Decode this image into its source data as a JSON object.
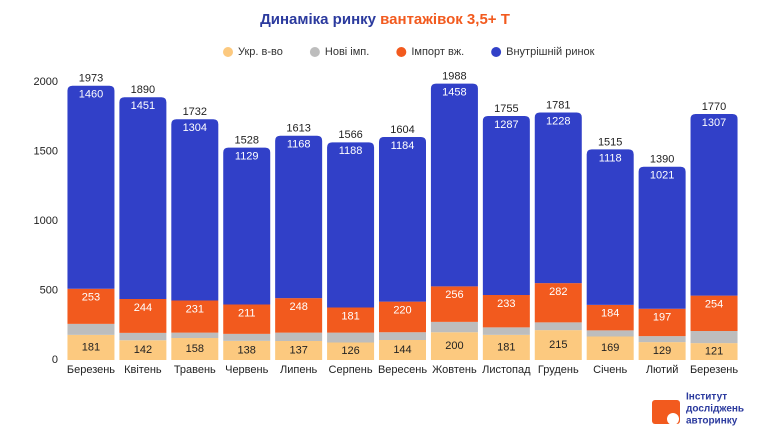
{
  "chart_data": {
    "type": "stacked-bar",
    "title_parts": [
      "Динаміка ринку",
      "вантажівок 3,5+ Т"
    ],
    "categories": [
      "Березень",
      "Квітень",
      "Травень",
      "Червень",
      "Липень",
      "Серпень",
      "Вересень",
      "Жовтень",
      "Листопад",
      "Грудень",
      "Січень",
      "Лютий",
      "Березень"
    ],
    "series": [
      {
        "name": "Укр. в-во",
        "color": "#fcc97f",
        "labels": true,
        "label_color": "#222",
        "values": [
          181,
          142,
          158,
          138,
          137,
          126,
          144,
          200,
          181,
          215,
          169,
          129,
          121
        ]
      },
      {
        "name": "Нові імп.",
        "color": "#bdbdbd",
        "labels": false,
        "values": [
          79,
          53,
          39,
          50,
          60,
          71,
          56,
          74,
          54,
          56,
          44,
          43,
          88
        ]
      },
      {
        "name": "Імпорт вж.",
        "color": "#f25a1e",
        "labels": true,
        "label_color": "#fff",
        "values": [
          253,
          244,
          231,
          211,
          248,
          181,
          220,
          256,
          233,
          282,
          184,
          197,
          254
        ]
      },
      {
        "name": "Внутрішній ринок",
        "color": "#3140c8",
        "labels": true,
        "label_color": "#fff",
        "values": [
          1460,
          1451,
          1304,
          1129,
          1168,
          1188,
          1184,
          1458,
          1287,
          1228,
          1118,
          1021,
          1307
        ]
      }
    ],
    "totals": [
      1973,
      1890,
      1732,
      1528,
      1613,
      1566,
      1604,
      1988,
      1755,
      1781,
      1515,
      1390,
      1770
    ],
    "ylim": [
      0,
      2000
    ],
    "yticks": [
      0,
      500,
      1000,
      1500,
      2000
    ],
    "grid": false
  },
  "logo": {
    "lines": [
      "Інститут",
      "досліджень",
      "авторинку"
    ]
  }
}
